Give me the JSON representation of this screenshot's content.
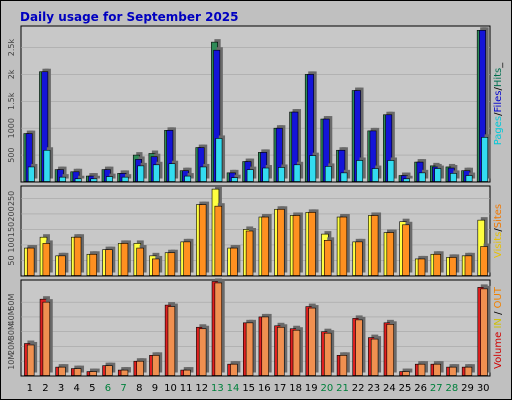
{
  "chart_data": {
    "title": "Daily usage for September 2025",
    "type": "bar",
    "categories": [
      "1",
      "2",
      "3",
      "4",
      "5",
      "6",
      "7",
      "8",
      "9",
      "10",
      "11",
      "12",
      "13",
      "14",
      "15",
      "16",
      "17",
      "18",
      "19",
      "20",
      "21",
      "22",
      "23",
      "24",
      "25",
      "26",
      "27",
      "28",
      "29",
      "30"
    ],
    "weekend_days": [
      "6",
      "7",
      "13",
      "14",
      "20",
      "21",
      "27",
      "28"
    ],
    "panels": [
      {
        "id": "hits",
        "y_ticks": [
          "500",
          "1000",
          "1.5k",
          "2k",
          "2.5k"
        ],
        "y_tick_values": [
          500,
          1000,
          1500,
          2000,
          2500
        ],
        "ylim": [
          0,
          2900
        ],
        "legend": [
          {
            "label": "Pages",
            "color": "#00c8d8"
          },
          {
            "label": "Files",
            "color": "#0000d0"
          },
          {
            "label": "Hits",
            "color": "#007050"
          }
        ],
        "legend_suffix": "_",
        "series": [
          {
            "name": "Hits",
            "color": "#2e8b57",
            "values": [
              900,
              2050,
              230,
              190,
              110,
              230,
              160,
              500,
              530,
              960,
              210,
              640,
              2600,
              170,
              380,
              550,
              1000,
              1300,
              2000,
              1170,
              590,
              1700,
              950,
              1250,
              120,
              370,
              300,
              280,
              210,
              2820
            ]
          },
          {
            "name": "Files",
            "color": "#1414d8",
            "values": [
              900,
              2050,
              230,
              190,
              110,
              230,
              160,
              420,
              470,
              960,
              210,
              640,
              2450,
              170,
              380,
              550,
              1000,
              1300,
              2000,
              1170,
              590,
              1700,
              950,
              1250,
              120,
              370,
              280,
              260,
              210,
              2820
            ]
          },
          {
            "name": "Pages",
            "color": "#33dcf0",
            "values": [
              280,
              590,
              90,
              60,
              60,
              100,
              90,
              300,
              320,
              340,
              110,
              280,
              810,
              80,
              230,
              260,
              270,
              320,
              490,
              290,
              170,
              400,
              250,
              400,
              60,
              170,
              250,
              160,
              120,
              830
            ]
          }
        ]
      },
      {
        "id": "visits",
        "y_ticks": [
          "50",
          "100",
          "150",
          "200",
          "250"
        ],
        "y_tick_values": [
          50,
          100,
          150,
          200,
          250
        ],
        "ylim": [
          0,
          290
        ],
        "legend": [
          {
            "label": "Visits",
            "color": "#e8c000"
          },
          {
            "label": "Sites",
            "color": "#f07800"
          }
        ],
        "legend_separator": "/",
        "series": [
          {
            "name": "Visits",
            "color": "#ffff40",
            "values": [
              90,
              125,
              65,
              125,
              70,
              85,
              105,
              105,
              65,
              75,
              110,
              230,
              280,
              90,
              150,
              190,
              215,
              195,
              205,
              135,
              190,
              110,
              195,
              140,
              175,
              55,
              70,
              60,
              65,
              180
            ]
          },
          {
            "name": "Sites",
            "color": "#ff9020",
            "values": [
              90,
              105,
              65,
              125,
              70,
              85,
              105,
              90,
              55,
              75,
              110,
              230,
              225,
              90,
              145,
              190,
              215,
              195,
              205,
              115,
              190,
              110,
              195,
              140,
              165,
              55,
              70,
              60,
              65,
              95
            ]
          }
        ]
      },
      {
        "id": "volume",
        "y_ticks": [
          "10M",
          "20M",
          "30M",
          "40M",
          "50M"
        ],
        "y_tick_values": [
          10,
          20,
          30,
          40,
          50
        ],
        "ylim": [
          0,
          65
        ],
        "legend": [
          {
            "label": "Volume",
            "color": "#d00000"
          },
          {
            "label": "IN",
            "color": "#d0c000"
          },
          {
            "label": "OUT",
            "color": "#f08000"
          }
        ],
        "legend_separators": [
          " ",
          " / "
        ],
        "series": [
          {
            "name": "Volume",
            "color": "#e02020",
            "values": [
              22,
              52,
              6,
              5,
              3,
              7,
              4,
              10,
              14,
              48,
              4,
              33,
              64,
              8,
              36,
              40,
              34,
              32,
              47,
              30,
              14,
              39,
              26,
              36,
              3,
              8,
              8,
              6,
              6,
              60
            ]
          },
          {
            "name": "OUT",
            "color": "#f09050",
            "values": [
              21,
              50,
              6,
              5,
              3,
              7,
              4,
              10,
              14,
              47,
              4,
              32,
              63,
              8,
              36,
              40,
              33,
              31,
              46,
              29,
              14,
              38,
              25,
              35,
              3,
              8,
              8,
              6,
              6,
              59
            ]
          }
        ]
      }
    ]
  }
}
